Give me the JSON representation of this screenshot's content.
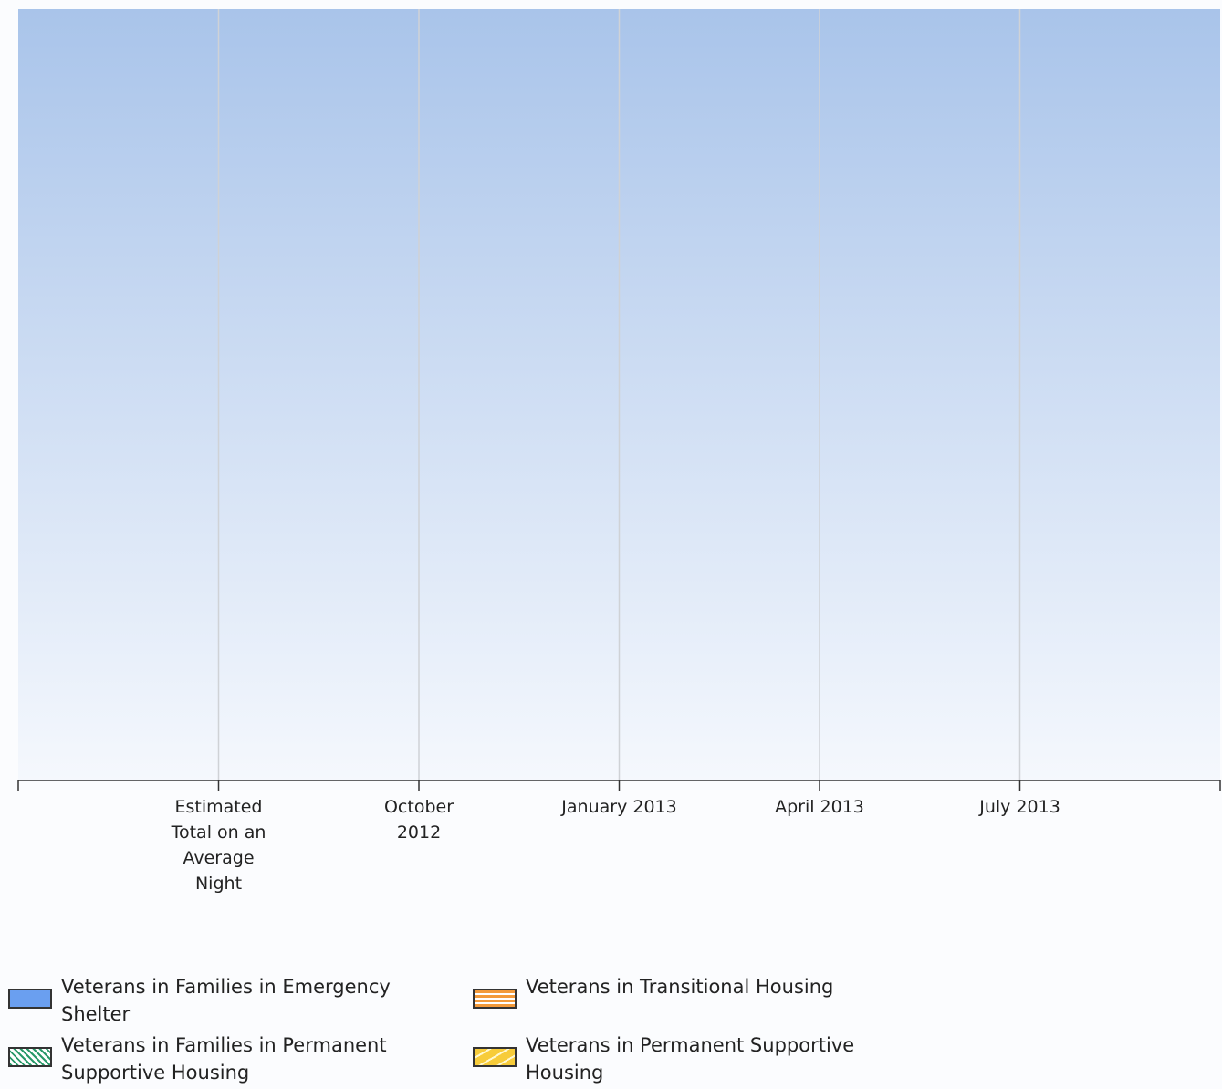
{
  "chart_data": {
    "type": "bar",
    "categories": [
      "Estimated Total on an Average Night",
      "October 2012",
      "January 2013",
      "April 2013",
      "July 2013"
    ],
    "series": [
      {
        "name": "Veterans in Families in Emergency Shelter",
        "color": "#6a9ff0"
      },
      {
        "name": "Veterans in Transitional Housing",
        "color": "#f39a3a"
      },
      {
        "name": "Veterans in Families in Permanent Supportive Housing",
        "color": "#2a9a6a"
      },
      {
        "name": "Veterans in Permanent Supportive Housing",
        "color": "#f7cc3a"
      }
    ],
    "grid": true
  }
}
